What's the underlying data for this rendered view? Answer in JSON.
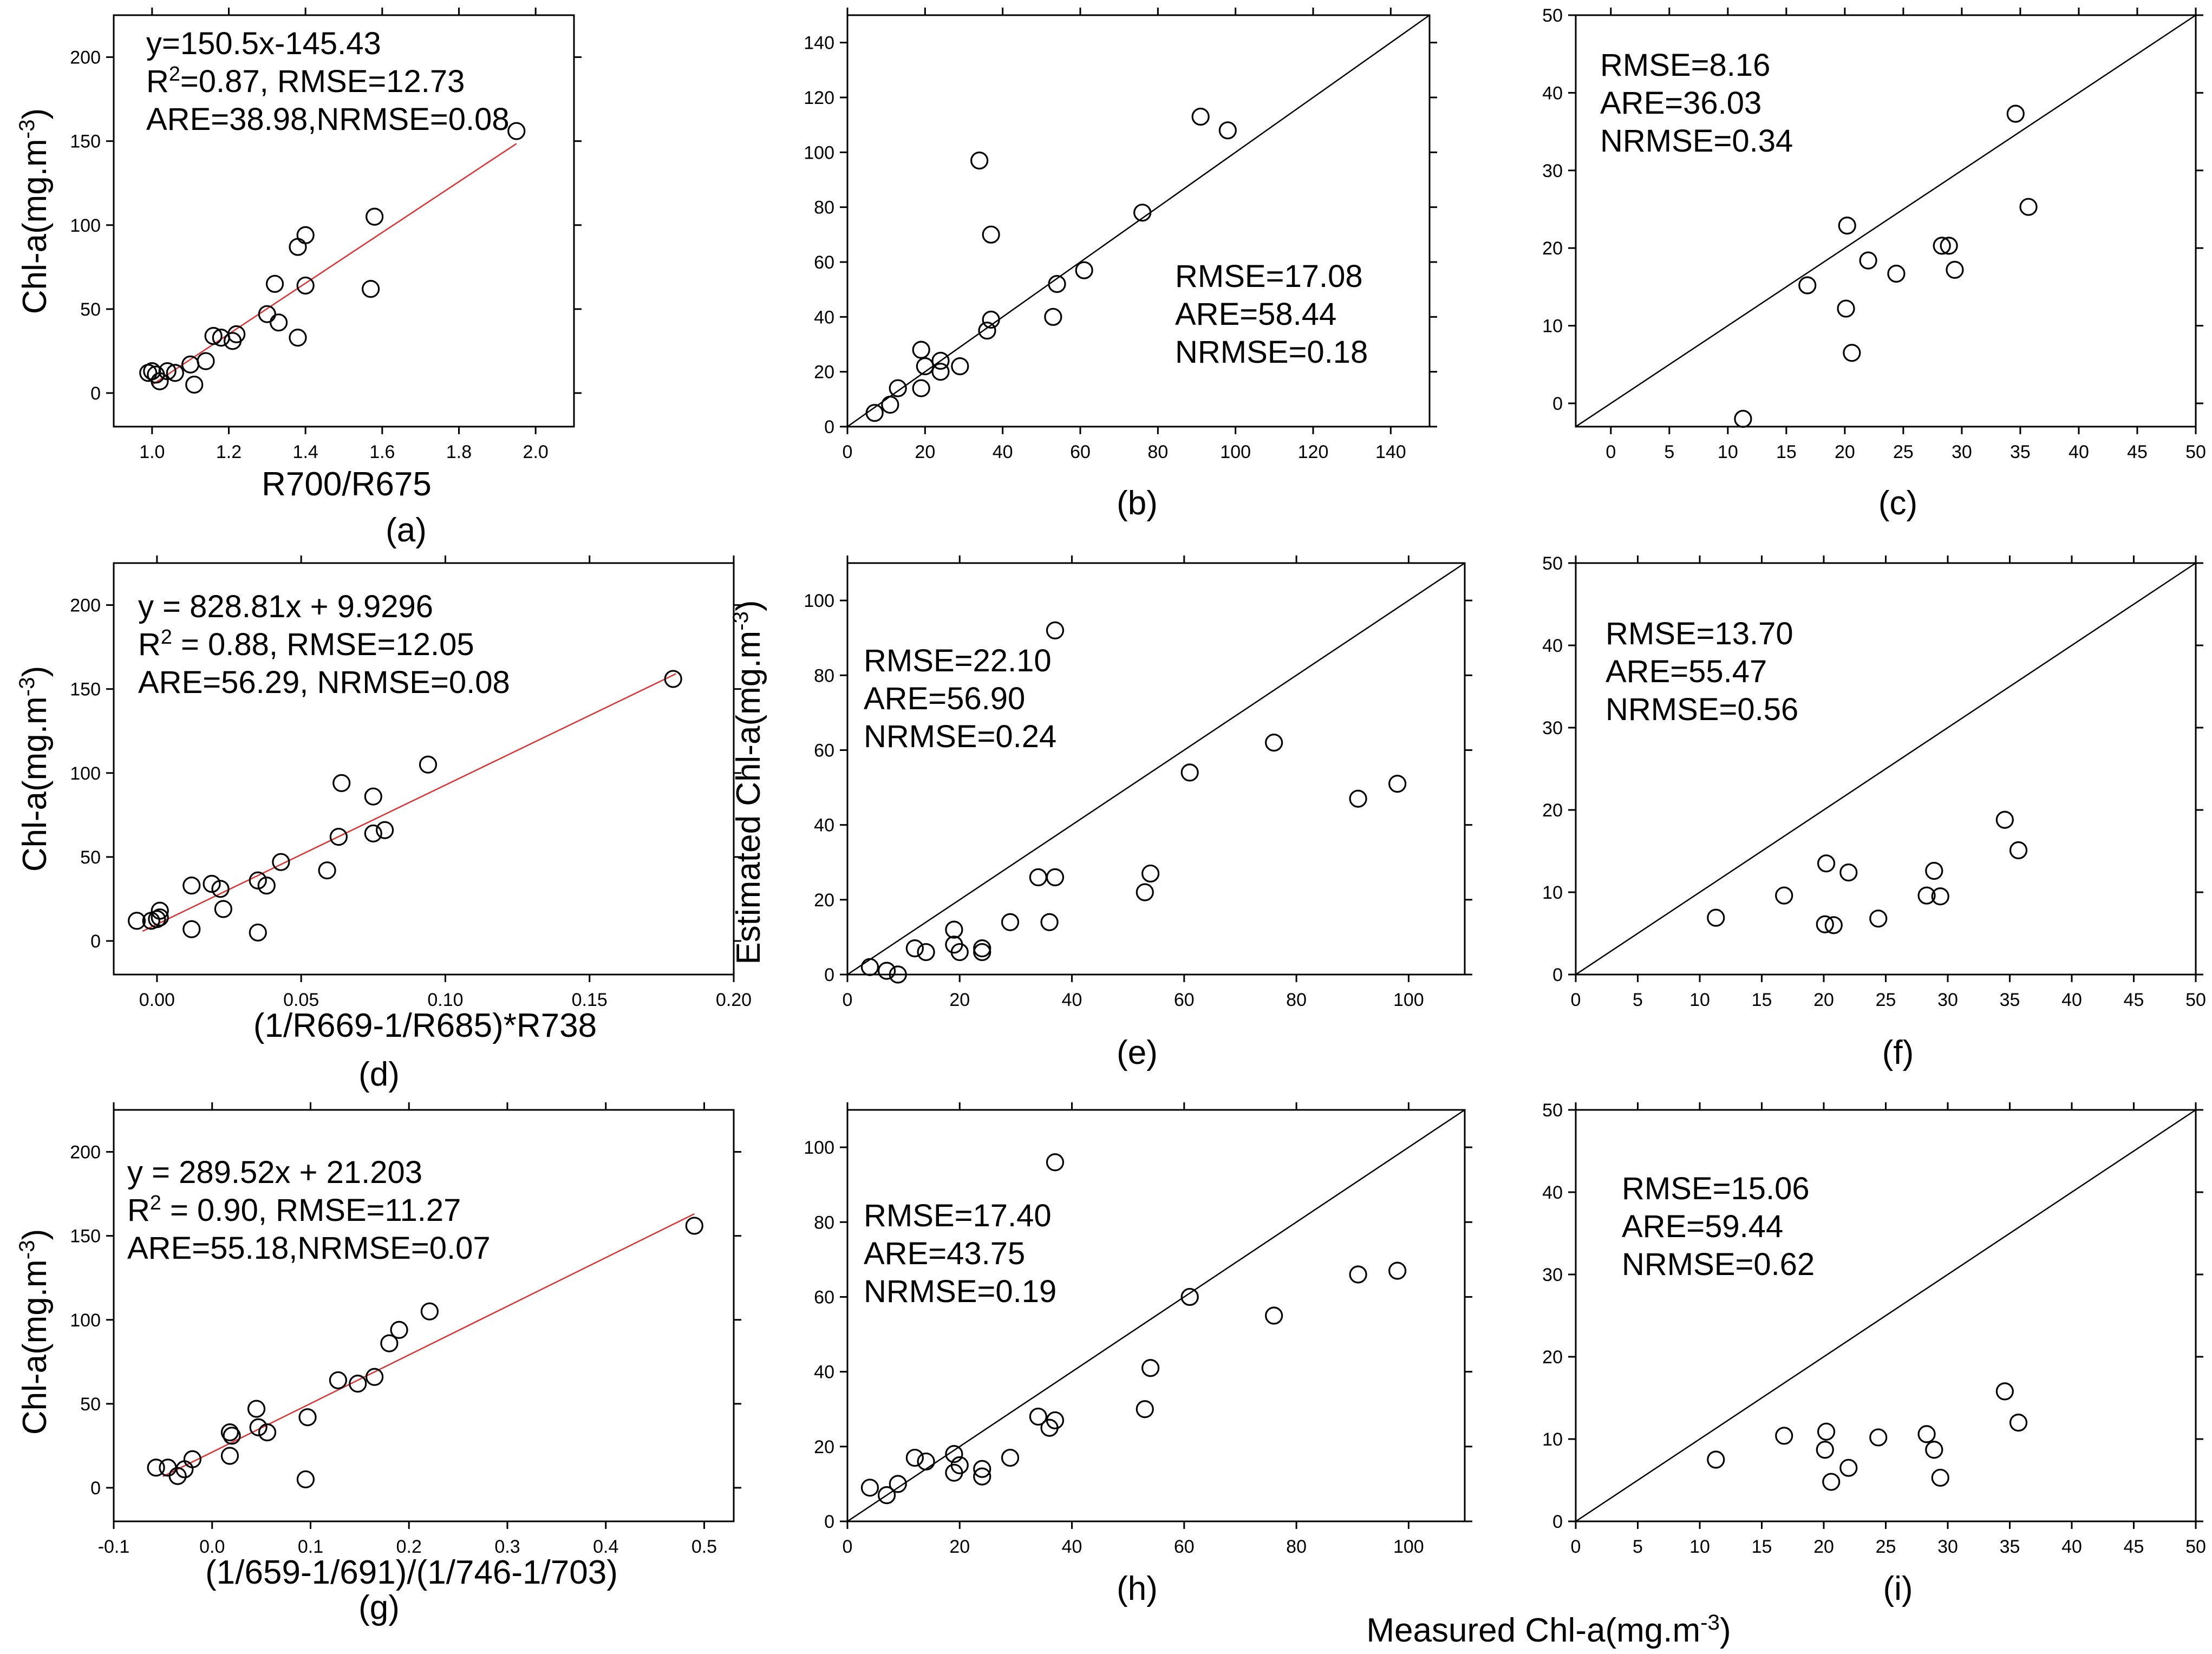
{
  "figure": {
    "y_axis_label_shared": "Estimated Chl-a(mg.m⁻³)",
    "x_axis_label_shared": "Measured Chl-a(mg.m⁻³)"
  },
  "chart_data": [
    {
      "id": "a",
      "type": "scatter",
      "caption": "(a)",
      "xlabel": "R700/R675",
      "ylabel": "Chl-a(mg.m⁻³)",
      "xlim": [
        0.9,
        2.1
      ],
      "ylim": [
        -20,
        225
      ],
      "xticks": [
        1.0,
        1.2,
        1.4,
        1.6,
        1.8,
        2.0
      ],
      "xtick_labels": [
        "1.0",
        "1.2",
        "1.4",
        "1.6",
        "1.8",
        "2.0"
      ],
      "yticks": [
        0,
        50,
        100,
        150,
        200
      ],
      "ytick_labels": [
        "0",
        "50",
        "100",
        "150",
        "200"
      ],
      "annotations": [
        "y=150.5x-145.43",
        "R²=0.87, RMSE=12.73",
        "ARE=38.98,NRMSE=0.08"
      ],
      "fit_line": {
        "x": [
          1.0,
          1.95
        ],
        "y": [
          4.9,
          148.5
        ],
        "color": "#e03030"
      },
      "points": [
        [
          0.99,
          12
        ],
        [
          1.0,
          13
        ],
        [
          1.01,
          11
        ],
        [
          1.02,
          7
        ],
        [
          1.04,
          13
        ],
        [
          1.06,
          12
        ],
        [
          1.1,
          17
        ],
        [
          1.11,
          5
        ],
        [
          1.14,
          19
        ],
        [
          1.16,
          34
        ],
        [
          1.18,
          33
        ],
        [
          1.21,
          31
        ],
        [
          1.22,
          35
        ],
        [
          1.3,
          47
        ],
        [
          1.32,
          65
        ],
        [
          1.33,
          42
        ],
        [
          1.38,
          87
        ],
        [
          1.38,
          33
        ],
        [
          1.4,
          94
        ],
        [
          1.4,
          64
        ],
        [
          1.57,
          62
        ],
        [
          1.58,
          105
        ],
        [
          1.95,
          156
        ]
      ]
    },
    {
      "id": "b",
      "type": "scatter",
      "caption": "(b)",
      "xlim": [
        0,
        150
      ],
      "ylim": [
        0,
        150
      ],
      "xticks": [
        0,
        20,
        40,
        60,
        80,
        100,
        120,
        140
      ],
      "xtick_labels": [
        "0",
        "20",
        "40",
        "60",
        "80",
        "100",
        "120",
        "140"
      ],
      "yticks": [
        0,
        20,
        40,
        60,
        80,
        100,
        120,
        140
      ],
      "ytick_labels": [
        "0",
        "20",
        "40",
        "60",
        "80",
        "100",
        "120",
        "140"
      ],
      "annotations": [
        "RMSE=17.08",
        "ARE=58.44",
        "NRMSE=0.18"
      ],
      "one_to_one": true,
      "points": [
        [
          7,
          5
        ],
        [
          11,
          8
        ],
        [
          13,
          14
        ],
        [
          19,
          14
        ],
        [
          19,
          28
        ],
        [
          20,
          22
        ],
        [
          24,
          20
        ],
        [
          24,
          24
        ],
        [
          29,
          22
        ],
        [
          34,
          97
        ],
        [
          36,
          35
        ],
        [
          37,
          39
        ],
        [
          37,
          70
        ],
        [
          53,
          40
        ],
        [
          54,
          52
        ],
        [
          61,
          57
        ],
        [
          76,
          78
        ],
        [
          91,
          113
        ],
        [
          98,
          108
        ]
      ]
    },
    {
      "id": "c",
      "type": "scatter",
      "caption": "(c)",
      "xlim": [
        -3,
        50
      ],
      "ylim": [
        -3,
        50
      ],
      "xticks": [
        0,
        5,
        10,
        15,
        20,
        25,
        30,
        35,
        40,
        45,
        50
      ],
      "xtick_labels": [
        "0",
        "5",
        "10",
        "15",
        "20",
        "25",
        "30",
        "35",
        "40",
        "45",
        "50"
      ],
      "yticks": [
        0,
        10,
        20,
        30,
        40,
        50
      ],
      "ytick_labels": [
        "0",
        "10",
        "20",
        "30",
        "40",
        "50"
      ],
      "annotations": [
        "RMSE=8.16",
        "ARE=36.03",
        "NRMSE=0.34"
      ],
      "one_to_one": true,
      "points": [
        [
          11.3,
          -2
        ],
        [
          16.8,
          15.2
        ],
        [
          20.1,
          12.2
        ],
        [
          20.2,
          22.9
        ],
        [
          20.6,
          6.5
        ],
        [
          22.0,
          18.4
        ],
        [
          24.4,
          16.7
        ],
        [
          28.3,
          20.3
        ],
        [
          28.9,
          20.3
        ],
        [
          29.4,
          17.2
        ],
        [
          34.6,
          37.3
        ],
        [
          35.7,
          25.3
        ]
      ]
    },
    {
      "id": "d",
      "type": "scatter",
      "caption": "(d)",
      "xlabel": "(1/R669-1/R685)*R738",
      "ylabel": "Chl-a(mg.m⁻³)",
      "xlim": [
        -0.015,
        0.2
      ],
      "ylim": [
        -20,
        225
      ],
      "xticks": [
        0.0,
        0.05,
        0.1,
        0.15,
        0.2
      ],
      "xtick_labels": [
        "0.00",
        "0.05",
        "0.10",
        "0.15",
        "0.20"
      ],
      "yticks": [
        0,
        50,
        100,
        150,
        200
      ],
      "ytick_labels": [
        "0",
        "50",
        "100",
        "150",
        "200"
      ],
      "annotations": [
        "y = 828.81x + 9.9296",
        "R² = 0.88, RMSE=12.05",
        "ARE=56.29, NRMSE=0.08"
      ],
      "fit_line": {
        "x": [
          -0.005,
          0.18
        ],
        "y": [
          5.8,
          159.1
        ],
        "color": "#e03030"
      },
      "points": [
        [
          -0.007,
          12
        ],
        [
          -0.002,
          12
        ],
        [
          0.0,
          13
        ],
        [
          0.001,
          18
        ],
        [
          0.001,
          14
        ],
        [
          0.012,
          7
        ],
        [
          0.012,
          33
        ],
        [
          0.019,
          34
        ],
        [
          0.022,
          31
        ],
        [
          0.023,
          19
        ],
        [
          0.035,
          36
        ],
        [
          0.035,
          5
        ],
        [
          0.038,
          33
        ],
        [
          0.043,
          47
        ],
        [
          0.059,
          42
        ],
        [
          0.063,
          62
        ],
        [
          0.064,
          94
        ],
        [
          0.075,
          64
        ],
        [
          0.075,
          86
        ],
        [
          0.079,
          66
        ],
        [
          0.094,
          105
        ],
        [
          0.179,
          156
        ]
      ]
    },
    {
      "id": "e",
      "type": "scatter",
      "caption": "(e)",
      "xlim": [
        0,
        110
      ],
      "ylim": [
        0,
        110
      ],
      "xticks": [
        0,
        20,
        40,
        60,
        80,
        100
      ],
      "xtick_labels": [
        "0",
        "20",
        "40",
        "60",
        "80",
        "100"
      ],
      "yticks": [
        0,
        20,
        40,
        60,
        80,
        100
      ],
      "ytick_labels": [
        "0",
        "20",
        "40",
        "60",
        "80",
        "100"
      ],
      "annotations": [
        "RMSE=22.10",
        "ARE=56.90",
        "NRMSE=0.24"
      ],
      "one_to_one": true,
      "points": [
        [
          4,
          2
        ],
        [
          7,
          1
        ],
        [
          9,
          0
        ],
        [
          12,
          7
        ],
        [
          14,
          6
        ],
        [
          19,
          12
        ],
        [
          19,
          8
        ],
        [
          20,
          6
        ],
        [
          24,
          6
        ],
        [
          24,
          7
        ],
        [
          29,
          14
        ],
        [
          34,
          26
        ],
        [
          36,
          14
        ],
        [
          37,
          26
        ],
        [
          37,
          92
        ],
        [
          53,
          22
        ],
        [
          54,
          27
        ],
        [
          61,
          54
        ],
        [
          76,
          62
        ],
        [
          91,
          47
        ],
        [
          98,
          51
        ]
      ]
    },
    {
      "id": "f",
      "type": "scatter",
      "caption": "(f)",
      "xlim": [
        0,
        50
      ],
      "ylim": [
        0,
        50
      ],
      "xticks": [
        0,
        5,
        10,
        15,
        20,
        25,
        30,
        35,
        40,
        45,
        50
      ],
      "xtick_labels": [
        "0",
        "5",
        "10",
        "15",
        "20",
        "25",
        "30",
        "35",
        "40",
        "45",
        "50"
      ],
      "yticks": [
        0,
        10,
        20,
        30,
        40,
        50
      ],
      "ytick_labels": [
        "0",
        "10",
        "20",
        "30",
        "40",
        "50"
      ],
      "annotations": [
        "RMSE=13.70",
        "ARE=55.47",
        "NRMSE=0.56"
      ],
      "one_to_one": true,
      "points": [
        [
          11.3,
          6.9
        ],
        [
          16.8,
          9.6
        ],
        [
          20.1,
          6.1
        ],
        [
          20.2,
          13.5
        ],
        [
          20.8,
          6.0
        ],
        [
          22.0,
          12.4
        ],
        [
          24.4,
          6.8
        ],
        [
          28.3,
          9.6
        ],
        [
          28.9,
          12.6
        ],
        [
          29.4,
          9.5
        ],
        [
          34.6,
          18.8
        ],
        [
          35.7,
          15.1
        ]
      ]
    },
    {
      "id": "g",
      "type": "scatter",
      "caption": "(g)",
      "xlabel": "(1/659-1/691)/(1/746-1/703)",
      "ylabel": "Chl-a(mg.m⁻³)",
      "xlim": [
        -0.1,
        0.53
      ],
      "ylim": [
        -20,
        225
      ],
      "xticks": [
        -0.1,
        0.0,
        0.1,
        0.2,
        0.3,
        0.4,
        0.5
      ],
      "xtick_labels": [
        "-0.1",
        "0.0",
        "0.1",
        "0.2",
        "0.3",
        "0.4",
        "0.5"
      ],
      "yticks": [
        0,
        50,
        100,
        150,
        200
      ],
      "ytick_labels": [
        "0",
        "50",
        "100",
        "150",
        "200"
      ],
      "annotations": [
        "y = 289.52x + 21.203",
        "R² = 0.90, RMSE=11.27",
        "ARE=55.18,NRMSE=0.07"
      ],
      "fit_line": {
        "x": [
          -0.05,
          0.49
        ],
        "y": [
          6.7,
          163.1
        ],
        "color": "#e03030"
      },
      "points": [
        [
          -0.057,
          12
        ],
        [
          -0.045,
          12
        ],
        [
          -0.035,
          7
        ],
        [
          -0.028,
          11
        ],
        [
          -0.02,
          17
        ],
        [
          0.018,
          33
        ],
        [
          0.02,
          31
        ],
        [
          0.018,
          19
        ],
        [
          0.045,
          47
        ],
        [
          0.047,
          36
        ],
        [
          0.056,
          33
        ],
        [
          0.095,
          5
        ],
        [
          0.097,
          42
        ],
        [
          0.128,
          64
        ],
        [
          0.148,
          62
        ],
        [
          0.165,
          66
        ],
        [
          0.18,
          86
        ],
        [
          0.19,
          94
        ],
        [
          0.221,
          105
        ],
        [
          0.49,
          156
        ]
      ]
    },
    {
      "id": "h",
      "type": "scatter",
      "caption": "(h)",
      "xlim": [
        0,
        110
      ],
      "ylim": [
        0,
        110
      ],
      "xticks": [
        0,
        20,
        40,
        60,
        80,
        100
      ],
      "xtick_labels": [
        "0",
        "20",
        "40",
        "60",
        "80",
        "100"
      ],
      "yticks": [
        0,
        20,
        40,
        60,
        80,
        100
      ],
      "ytick_labels": [
        "0",
        "20",
        "40",
        "60",
        "80",
        "100"
      ],
      "annotations": [
        "RMSE=17.40",
        "ARE=43.75",
        "NRMSE=0.19"
      ],
      "one_to_one": true,
      "points": [
        [
          4,
          9
        ],
        [
          7,
          7
        ],
        [
          9,
          10
        ],
        [
          12,
          17
        ],
        [
          14,
          16
        ],
        [
          19,
          18
        ],
        [
          19,
          13
        ],
        [
          20,
          15
        ],
        [
          24,
          14
        ],
        [
          24,
          12
        ],
        [
          29,
          17
        ],
        [
          34,
          28
        ],
        [
          36,
          25
        ],
        [
          37,
          27
        ],
        [
          37,
          96
        ],
        [
          53,
          30
        ],
        [
          54,
          41
        ],
        [
          61,
          60
        ],
        [
          76,
          55
        ],
        [
          91,
          66
        ],
        [
          98,
          67
        ]
      ]
    },
    {
      "id": "i",
      "type": "scatter",
      "caption": "(i)",
      "xlim": [
        0,
        50
      ],
      "ylim": [
        0,
        50
      ],
      "xticks": [
        0,
        5,
        10,
        15,
        20,
        25,
        30,
        35,
        40,
        45,
        50
      ],
      "xtick_labels": [
        "0",
        "5",
        "10",
        "15",
        "20",
        "25",
        "30",
        "35",
        "40",
        "45",
        "50"
      ],
      "yticks": [
        0,
        10,
        20,
        30,
        40,
        50
      ],
      "ytick_labels": [
        "0",
        "10",
        "20",
        "30",
        "40",
        "50"
      ],
      "annotations": [
        "RMSE=15.06",
        "ARE=59.44",
        "NRMSE=0.62"
      ],
      "one_to_one": true,
      "points": [
        [
          11.3,
          7.5
        ],
        [
          16.8,
          10.4
        ],
        [
          20.1,
          8.7
        ],
        [
          20.2,
          10.9
        ],
        [
          20.6,
          4.8
        ],
        [
          22.0,
          6.5
        ],
        [
          24.4,
          10.2
        ],
        [
          28.3,
          10.6
        ],
        [
          28.9,
          8.7
        ],
        [
          29.4,
          5.3
        ],
        [
          34.6,
          15.8
        ],
        [
          35.7,
          12.0
        ]
      ]
    }
  ]
}
